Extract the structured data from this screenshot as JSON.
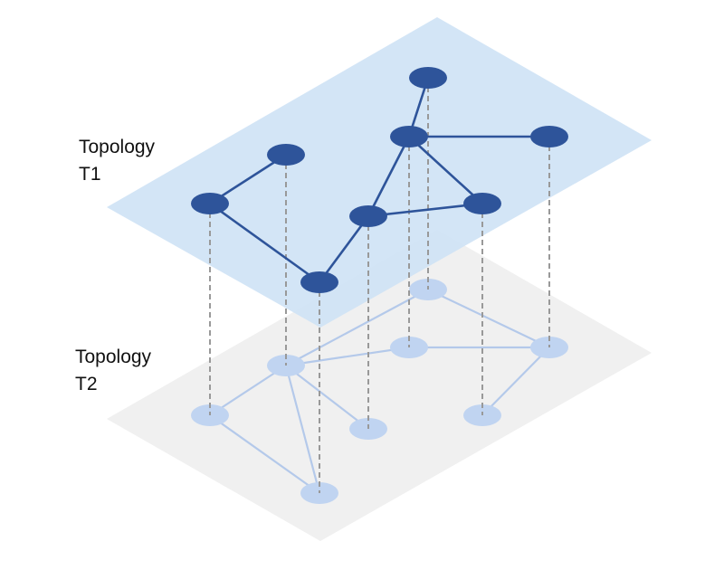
{
  "labels": {
    "t1": {
      "line1": "Topology",
      "line2": "T1"
    },
    "t2": {
      "line1": "Topology",
      "line2": "T2"
    }
  },
  "colors": {
    "plane_t1": "#cfe3f5",
    "plane_t2": "#f0f0f0",
    "node_t1": "#2e549a",
    "edge_t1": "#2e549a",
    "node_t2": "#c0d4f1",
    "edge_t2": "#b4c9ea",
    "dashed_projection": "#999999",
    "label_text": "#111111"
  },
  "topology_t1": {
    "nodes": [
      "a",
      "b",
      "c",
      "d",
      "e",
      "f",
      "g",
      "h"
    ],
    "edges": [
      [
        "a",
        "b"
      ],
      [
        "b",
        "e"
      ],
      [
        "b",
        "c"
      ],
      [
        "c",
        "f"
      ],
      [
        "c",
        "d"
      ],
      [
        "e",
        "f"
      ],
      [
        "e",
        "g"
      ],
      [
        "d",
        "g"
      ],
      [
        "g",
        "h"
      ]
    ]
  },
  "topology_t2": {
    "nodes": [
      "p",
      "q",
      "r",
      "s",
      "t",
      "u",
      "v",
      "w",
      "x"
    ],
    "edges": [
      [
        "p",
        "q"
      ],
      [
        "q",
        "t"
      ],
      [
        "q",
        "r"
      ],
      [
        "q",
        "s"
      ],
      [
        "q",
        "u"
      ],
      [
        "q",
        "v"
      ],
      [
        "r",
        "x"
      ],
      [
        "r",
        "w"
      ],
      [
        "x",
        "w"
      ],
      [
        "x",
        "u"
      ]
    ]
  }
}
